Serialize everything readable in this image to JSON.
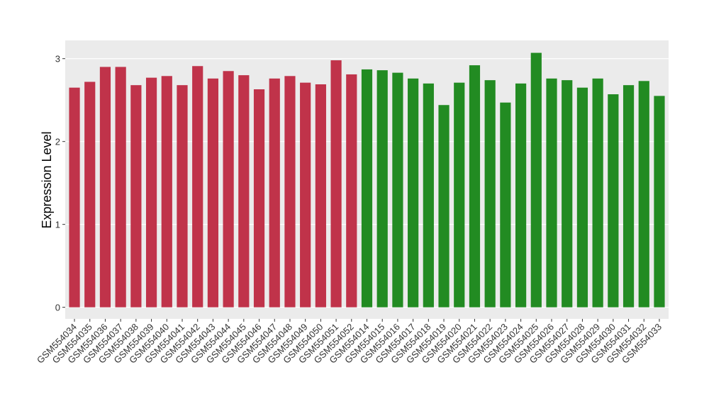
{
  "chart_data": {
    "type": "bar",
    "y_label": "Expression Level",
    "categories": [
      "GSM554034",
      "GSM554035",
      "GSM554036",
      "GSM554037",
      "GSM554038",
      "GSM554039",
      "GSM554040",
      "GSM554041",
      "GSM554042",
      "GSM554043",
      "GSM554044",
      "GSM554045",
      "GSM554046",
      "GSM554047",
      "GSM554048",
      "GSM554049",
      "GSM554050",
      "GSM554051",
      "GSM554052",
      "GSM554014",
      "GSM554015",
      "GSM554016",
      "GSM554017",
      "GSM554018",
      "GSM554019",
      "GSM554020",
      "GSM554021",
      "GSM554022",
      "GSM554023",
      "GSM554024",
      "GSM554025",
      "GSM554026",
      "GSM554027",
      "GSM554028",
      "GSM554029",
      "GSM554030",
      "GSM554031",
      "GSM554032",
      "GSM554033"
    ],
    "values": [
      2.65,
      2.72,
      2.9,
      2.9,
      2.68,
      2.77,
      2.79,
      2.68,
      2.91,
      2.76,
      2.85,
      2.8,
      2.63,
      2.76,
      2.79,
      2.71,
      2.69,
      2.98,
      2.81,
      2.87,
      2.86,
      2.83,
      2.76,
      2.7,
      2.44,
      2.71,
      2.92,
      2.74,
      2.47,
      2.7,
      3.07,
      2.76,
      2.74,
      2.65,
      2.76,
      2.57,
      2.68,
      2.73,
      2.55
    ],
    "colors": [
      "#c0334a",
      "#c0334a",
      "#c0334a",
      "#c0334a",
      "#c0334a",
      "#c0334a",
      "#c0334a",
      "#c0334a",
      "#c0334a",
      "#c0334a",
      "#c0334a",
      "#c0334a",
      "#c0334a",
      "#c0334a",
      "#c0334a",
      "#c0334a",
      "#c0334a",
      "#c0334a",
      "#c0334a",
      "#228b22",
      "#228b22",
      "#228b22",
      "#228b22",
      "#228b22",
      "#228b22",
      "#228b22",
      "#228b22",
      "#228b22",
      "#228b22",
      "#228b22",
      "#228b22",
      "#228b22",
      "#228b22",
      "#228b22",
      "#228b22",
      "#228b22",
      "#228b22",
      "#228b22",
      "#228b22"
    ],
    "ylim": [
      -0.14,
      3.22
    ],
    "yticks": [
      0,
      1,
      2,
      3
    ],
    "grid": true
  }
}
